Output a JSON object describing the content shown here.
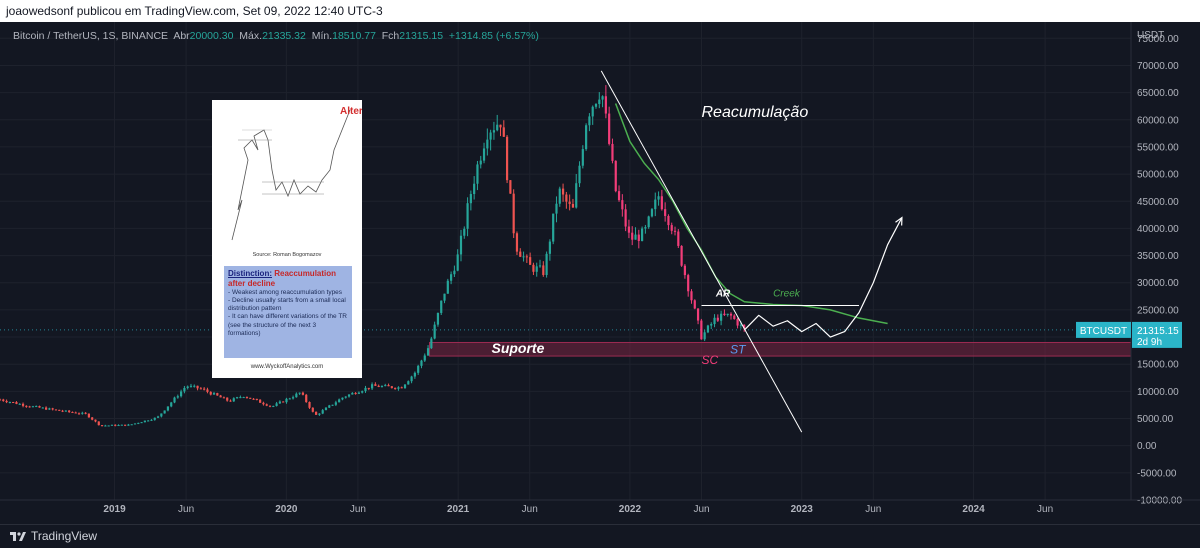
{
  "header": {
    "publisher_line": "joaowedsonf publicou em TradingView.com, Set 09, 2022 12:40 UTC-3"
  },
  "legend": {
    "symbol": "Bitcoin / TetherUS, 1S, BINANCE",
    "open_label": "Abr",
    "open": "20000.30",
    "high_label": "Máx.",
    "high": "21335.32",
    "low_label": "Mín.",
    "low": "18510.77",
    "close_label": "Fch",
    "close": "21315.15",
    "change": "+1314.85 (+6.57%)"
  },
  "price_tag": {
    "ticker": "BTCUSDT",
    "price": "21315.15",
    "countdown": "2d 9h"
  },
  "inset": {
    "alter": "Alter",
    "source": "Source: Roman Bogomazov",
    "title_a": "Distinction:",
    "title_b": "Reaccumulation after decline",
    "bullets": [
      "- Weakest among reaccumulation types",
      "- Decline usually starts from a small local distribution pattern",
      "- It can have different variations of the TR (see the structure of the next 3 formations)"
    ],
    "footer": "www.WyckoffAnalytics.com"
  },
  "annotations": {
    "reacumulacao": "Reacumulação",
    "suporte": "Suporte",
    "ar": "AR",
    "creek": "Creek",
    "sc": "SC",
    "st": "ST"
  },
  "footer": {
    "brand": "TradingView"
  },
  "colors": {
    "background": "#131722",
    "up": "#26a69a",
    "down": "#ef5350",
    "down_recent": "#f23d79",
    "support_zone": "#7a2441",
    "creek": "#4caf50",
    "price_tag": "#2bb5c8",
    "projection": "#ffffff"
  },
  "chart_data": {
    "type": "candlestick",
    "title": "Bitcoin / TetherUS, 1S, BINANCE",
    "y_axis_label": "USDT",
    "y_ticks": [
      75000,
      70000,
      65000,
      60000,
      55000,
      50000,
      45000,
      40000,
      35000,
      30000,
      25000,
      20000,
      15000,
      10000,
      5000,
      0,
      -5000,
      -10000
    ],
    "y_tick_labels": [
      "75000.00",
      "70000.00",
      "65000.00",
      "60000.00",
      "55000.00",
      "50000.00",
      "45000.00",
      "40000.00",
      "35000.00",
      "30000.00",
      "25000.00",
      "20000.00",
      "15000.00",
      "10000.00",
      "5000.00",
      "0.00",
      "-5000.00",
      "-10000.00"
    ],
    "ylim": [
      -10000,
      78000
    ],
    "xlim": [
      "2018-05",
      "2024-12"
    ],
    "x_ticks": [
      {
        "date": "2019-01",
        "label": "2019",
        "bold": true
      },
      {
        "date": "2019-06",
        "label": "Jun",
        "bold": false
      },
      {
        "date": "2020-01",
        "label": "2020",
        "bold": true
      },
      {
        "date": "2020-06",
        "label": "Jun",
        "bold": false
      },
      {
        "date": "2021-01",
        "label": "2021",
        "bold": true
      },
      {
        "date": "2021-06",
        "label": "Jun",
        "bold": false
      },
      {
        "date": "2022-01",
        "label": "2022",
        "bold": true
      },
      {
        "date": "2022-06",
        "label": "Jun",
        "bold": false
      },
      {
        "date": "2023-01",
        "label": "2023",
        "bold": true
      },
      {
        "date": "2023-06",
        "label": "Jun",
        "bold": false
      },
      {
        "date": "2024-01",
        "label": "2024",
        "bold": true
      },
      {
        "date": "2024-06",
        "label": "Jun",
        "bold": false
      }
    ],
    "price_path": [
      [
        "2018-05",
        8500
      ],
      [
        "2018-07",
        7300
      ],
      [
        "2018-09",
        6500
      ],
      [
        "2018-11",
        5800
      ],
      [
        "2018-12",
        3700
      ],
      [
        "2019-02",
        3800
      ],
      [
        "2019-04",
        5200
      ],
      [
        "2019-06",
        11000
      ],
      [
        "2019-07",
        10500
      ],
      [
        "2019-09",
        8200
      ],
      [
        "2019-10",
        9200
      ],
      [
        "2019-12",
        7200
      ],
      [
        "2020-02",
        9800
      ],
      [
        "2020-03",
        5500
      ],
      [
        "2020-05",
        9000
      ],
      [
        "2020-07",
        11000
      ],
      [
        "2020-09",
        10700
      ],
      [
        "2020-10",
        13500
      ],
      [
        "2020-11",
        18500
      ],
      [
        "2020-12",
        28000
      ],
      [
        "2021-01",
        35000
      ],
      [
        "2021-02",
        48000
      ],
      [
        "2021-03",
        58000
      ],
      [
        "2021-04",
        60000
      ],
      [
        "2021-05",
        37000
      ],
      [
        "2021-06",
        33000
      ],
      [
        "2021-07",
        32000
      ],
      [
        "2021-08",
        47000
      ],
      [
        "2021-09",
        43000
      ],
      [
        "2021-10",
        61000
      ],
      [
        "2021-11",
        66000
      ],
      [
        "2021-12",
        47000
      ],
      [
        "2022-01",
        38000
      ],
      [
        "2022-02",
        39000
      ],
      [
        "2022-03",
        46000
      ],
      [
        "2022-04",
        40000
      ],
      [
        "2022-05",
        30000
      ],
      [
        "2022-06",
        20000
      ],
      [
        "2022-07",
        23500
      ],
      [
        "2022-08",
        24000
      ],
      [
        "2022-09",
        21315
      ]
    ],
    "support_zone": {
      "label": "Suporte",
      "from": "2020-11",
      "to": "2024-12",
      "low": 16500,
      "high": 19000
    },
    "creek": {
      "label": "Creek",
      "y": 25800,
      "from": "2022-06",
      "to": "2023-05"
    },
    "downtrend_line": {
      "from": [
        "2021-11",
        69000
      ],
      "to": [
        "2023-01",
        2500
      ]
    },
    "moving_average": [
      [
        "2021-12",
        63000
      ],
      [
        "2022-01",
        56000
      ],
      [
        "2022-02",
        52000
      ],
      [
        "2022-03",
        49000
      ],
      [
        "2022-04",
        45000
      ],
      [
        "2022-05",
        40000
      ],
      [
        "2022-06",
        36000
      ],
      [
        "2022-07",
        31000
      ],
      [
        "2022-08",
        28000
      ],
      [
        "2022-09",
        26500
      ],
      [
        "2022-11",
        26000
      ],
      [
        "2023-01",
        25800
      ],
      [
        "2023-03",
        25000
      ],
      [
        "2023-05",
        23500
      ],
      [
        "2023-07",
        22500
      ]
    ],
    "projection": [
      [
        "2022-09",
        21315
      ],
      [
        "2022-10",
        24000
      ],
      [
        "2022-11",
        22000
      ],
      [
        "2022-12",
        23000
      ],
      [
        "2023-01",
        21000
      ],
      [
        "2023-02",
        22500
      ],
      [
        "2023-03",
        20000
      ],
      [
        "2023-04",
        21000
      ],
      [
        "2023-05",
        24500
      ],
      [
        "2023-06",
        30000
      ],
      [
        "2023-07",
        37000
      ],
      [
        "2023-08",
        42000
      ]
    ],
    "labels": [
      {
        "key": "reacumulacao",
        "date": "2022-06",
        "price": 60500
      },
      {
        "key": "ar",
        "date": "2022-07",
        "price": 27500
      },
      {
        "key": "creek",
        "date": "2022-11",
        "price": 27500
      },
      {
        "key": "sc",
        "date": "2022-06",
        "price": 15000
      },
      {
        "key": "st",
        "date": "2022-08",
        "price": 17000
      }
    ],
    "last_price": 21315.15
  }
}
